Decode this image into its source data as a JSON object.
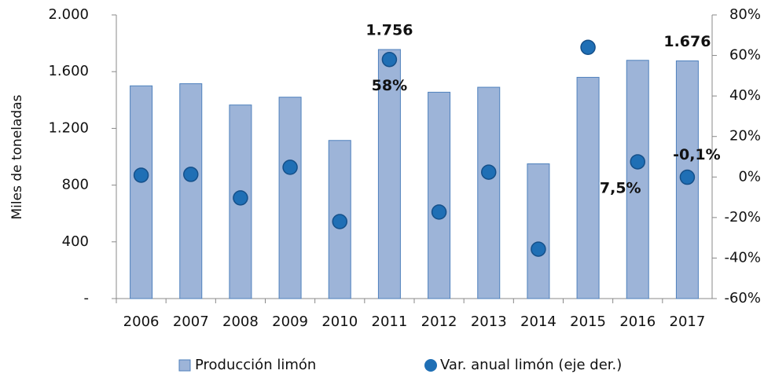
{
  "chart_data": {
    "type": "bar",
    "y_label": "Miles de toneladas",
    "categories": [
      "2006",
      "2007",
      "2008",
      "2009",
      "2010",
      "2011",
      "2012",
      "2013",
      "2014",
      "2015",
      "2016",
      "2017"
    ],
    "series": [
      {
        "name": "Producción limón",
        "type": "bar",
        "color": "#9db4d8",
        "values": [
          1500,
          1515,
          1365,
          1420,
          1115,
          1756,
          1455,
          1490,
          950,
          1560,
          1680,
          1676
        ],
        "value_labels": [
          null,
          null,
          null,
          null,
          null,
          "1.756",
          null,
          null,
          null,
          null,
          null,
          "1.676"
        ]
      },
      {
        "name": "Var. anual limón (eje der.)",
        "type": "scatter",
        "axis": "y2",
        "color": "#1f6fb5",
        "values": [
          0.9,
          1.3,
          -10.3,
          4.8,
          -22,
          58,
          -17.3,
          2.4,
          -35.6,
          64,
          7.5,
          -0.1
        ],
        "value_labels": [
          null,
          null,
          null,
          null,
          null,
          "58%",
          null,
          null,
          null,
          null,
          "7,5%",
          "-0,1%"
        ]
      }
    ],
    "ylim": [
      0,
      2000
    ],
    "yticks": [
      {
        "value": 0,
        "label": "-"
      },
      400,
      800,
      {
        "value": 1200,
        "label": "1.200"
      },
      {
        "value": 1600,
        "label": "1.600"
      },
      {
        "value": 2000,
        "label": "2.000"
      }
    ],
    "y2lim": [
      -60,
      80
    ],
    "y2ticks": [
      {
        "value": -60,
        "label": "-60%"
      },
      {
        "value": -40,
        "label": "-40%"
      },
      {
        "value": -20,
        "label": "-20%"
      },
      {
        "value": 0,
        "label": "0%"
      },
      {
        "value": 20,
        "label": "20%"
      },
      {
        "value": 40,
        "label": "40%"
      },
      {
        "value": 60,
        "label": "60%"
      },
      {
        "value": 80,
        "label": "80%"
      }
    ],
    "grid": false,
    "legend": "bottom"
  }
}
